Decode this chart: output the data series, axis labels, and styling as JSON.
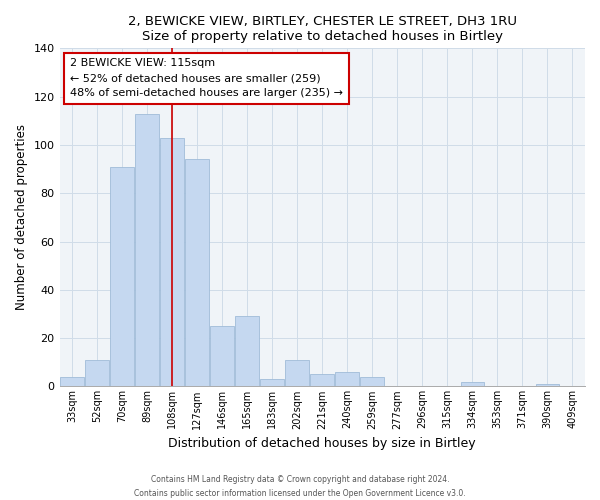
{
  "title": "2, BEWICKE VIEW, BIRTLEY, CHESTER LE STREET, DH3 1RU",
  "subtitle": "Size of property relative to detached houses in Birtley",
  "xlabel": "Distribution of detached houses by size in Birtley",
  "ylabel": "Number of detached properties",
  "bin_labels": [
    "33sqm",
    "52sqm",
    "70sqm",
    "89sqm",
    "108sqm",
    "127sqm",
    "146sqm",
    "165sqm",
    "183sqm",
    "202sqm",
    "221sqm",
    "240sqm",
    "259sqm",
    "277sqm",
    "296sqm",
    "315sqm",
    "334sqm",
    "353sqm",
    "371sqm",
    "390sqm",
    "409sqm"
  ],
  "bar_heights": [
    4,
    11,
    91,
    113,
    103,
    94,
    25,
    29,
    3,
    11,
    5,
    6,
    4,
    0,
    0,
    0,
    2,
    0,
    0,
    1,
    0
  ],
  "bar_color": "#c5d8f0",
  "bar_edge_color": "#a0bcd8",
  "highlight_bar_index": 4,
  "vline_color": "#cc0000",
  "annotation_title": "2 BEWICKE VIEW: 115sqm",
  "annotation_line1": "← 52% of detached houses are smaller (259)",
  "annotation_line2": "48% of semi-detached houses are larger (235) →",
  "annotation_box_facecolor": "#ffffff",
  "annotation_box_edgecolor": "#cc0000",
  "ylim": [
    0,
    140
  ],
  "yticks": [
    0,
    20,
    40,
    60,
    80,
    100,
    120,
    140
  ],
  "grid_color": "#d0dce8",
  "footer1": "Contains HM Land Registry data © Crown copyright and database right 2024.",
  "footer2": "Contains public sector information licensed under the Open Government Licence v3.0."
}
